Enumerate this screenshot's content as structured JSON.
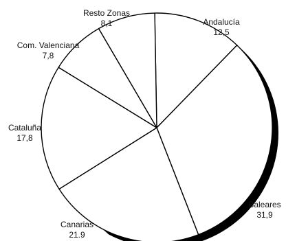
{
  "chart_data": {
    "type": "pie",
    "title": "",
    "slices": [
      {
        "label": "Andalucía",
        "value_text": "12,5",
        "value": 12.5
      },
      {
        "label": "Baleares",
        "value_text": "31,9",
        "value": 31.9
      },
      {
        "label": "Canarias",
        "value_text": "21.9",
        "value": 21.9
      },
      {
        "label": "Cataluña",
        "value_text": "17,8",
        "value": 17.8
      },
      {
        "label": "Com. Valenciana",
        "value_text": "7,8",
        "value": 7.8
      },
      {
        "label": "Resto Zonas",
        "value_text": "8,1",
        "value": 8.1
      }
    ],
    "colors": {
      "fill": "#ffffff",
      "stroke": "#000000",
      "shadow": "#000000"
    },
    "style": "3d-shadow-monochrome"
  }
}
